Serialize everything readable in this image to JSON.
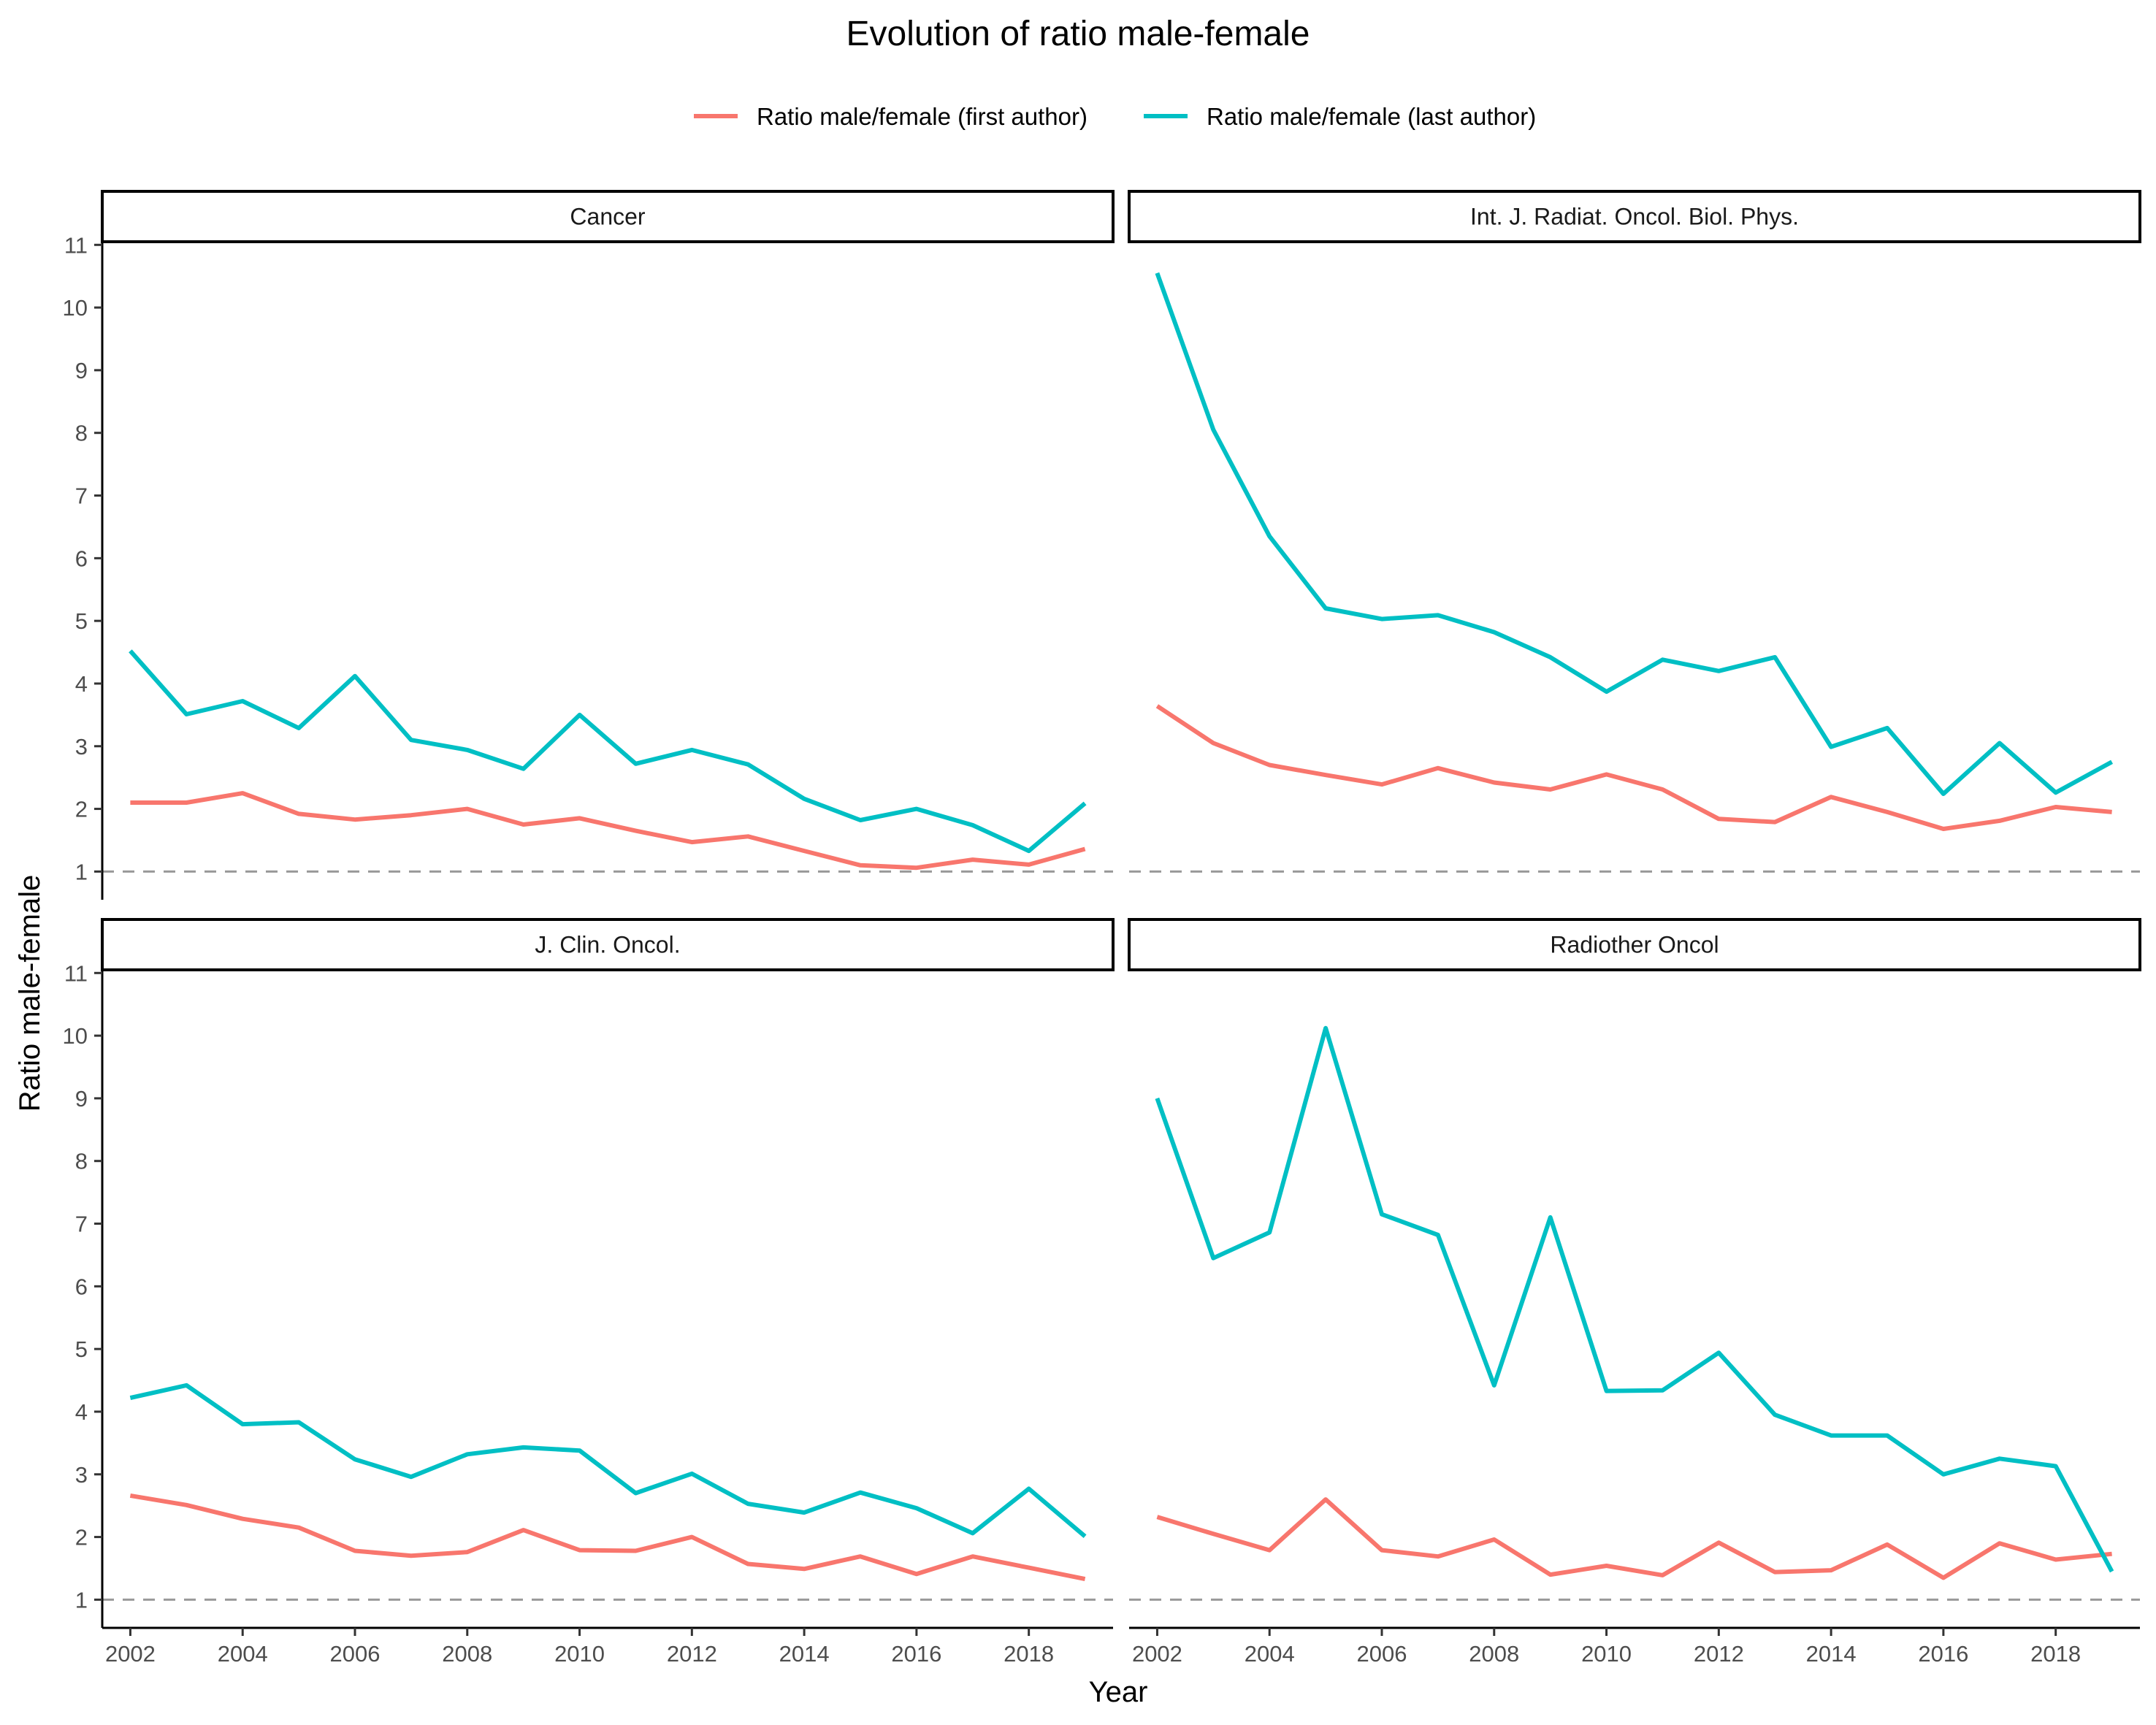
{
  "chart_data": {
    "type": "line",
    "title": "Evolution of ratio male-female",
    "xlabel": "Year",
    "ylabel": "Ratio male-female",
    "xlim": [
      2001.5,
      2019.5
    ],
    "ylim": [
      0.55,
      11.05
    ],
    "x_ticks": [
      2002,
      2004,
      2006,
      2008,
      2010,
      2012,
      2014,
      2016,
      2018
    ],
    "y_ticks": [
      1,
      2,
      3,
      4,
      5,
      6,
      7,
      8,
      9,
      10,
      11
    ],
    "reference_line": 1,
    "legend_position": "top",
    "colors": {
      "first": "#F8766D",
      "last": "#00BFC4",
      "reference": "#999999"
    },
    "legend": [
      {
        "key": "first",
        "label": "Ratio male/female (first author)"
      },
      {
        "key": "last",
        "label": "Ratio male/female (last author)"
      }
    ],
    "x": [
      2002,
      2003,
      2004,
      2005,
      2006,
      2007,
      2008,
      2009,
      2010,
      2011,
      2012,
      2013,
      2014,
      2015,
      2016,
      2017,
      2018,
      2019
    ],
    "panels": [
      {
        "label": "Cancer",
        "series": [
          {
            "key": "first",
            "name": "Ratio male/female (first author)",
            "values": [
              2.1,
              2.1,
              2.25,
              1.92,
              1.83,
              1.9,
              2.0,
              1.75,
              1.85,
              1.65,
              1.47,
              1.56,
              1.33,
              1.1,
              1.06,
              1.19,
              1.11,
              1.36
            ]
          },
          {
            "key": "last",
            "name": "Ratio male/female (last author)",
            "values": [
              4.52,
              3.51,
              3.72,
              3.29,
              4.12,
              3.1,
              2.94,
              2.64,
              3.5,
              2.72,
              2.94,
              2.71,
              2.16,
              1.82,
              2.0,
              1.74,
              1.33,
              2.09
            ]
          }
        ]
      },
      {
        "label": "Int. J. Radiat. Oncol. Biol. Phys.",
        "series": [
          {
            "key": "first",
            "name": "Ratio male/female (first author)",
            "values": [
              3.64,
              3.05,
              2.7,
              2.54,
              2.39,
              2.65,
              2.42,
              2.31,
              2.55,
              2.31,
              1.84,
              1.79,
              2.19,
              1.95,
              1.68,
              1.81,
              2.03,
              1.95
            ]
          },
          {
            "key": "last",
            "name": "Ratio male/female (last author)",
            "values": [
              10.55,
              8.05,
              6.35,
              5.2,
              5.03,
              5.09,
              4.82,
              4.42,
              3.87,
              4.38,
              4.2,
              4.42,
              2.99,
              3.29,
              2.24,
              3.05,
              2.26,
              2.75
            ]
          }
        ]
      },
      {
        "label": "J. Clin. Oncol.",
        "series": [
          {
            "key": "first",
            "name": "Ratio male/female (first author)",
            "values": [
              2.66,
              2.51,
              2.29,
              2.15,
              1.78,
              1.7,
              1.76,
              2.11,
              1.79,
              1.78,
              2.0,
              1.57,
              1.49,
              1.69,
              1.41,
              1.69,
              1.51,
              1.33
            ]
          },
          {
            "key": "last",
            "name": "Ratio male/female (last author)",
            "values": [
              4.22,
              4.42,
              3.8,
              3.83,
              3.24,
              2.96,
              3.32,
              3.43,
              3.38,
              2.7,
              3.01,
              2.53,
              2.39,
              2.71,
              2.46,
              2.06,
              2.77,
              2.01
            ]
          }
        ]
      },
      {
        "label": "Radiother Oncol",
        "series": [
          {
            "key": "first",
            "name": "Ratio male/female (first author)",
            "values": [
              2.32,
              2.05,
              1.79,
              2.6,
              1.79,
              1.69,
              1.96,
              1.4,
              1.54,
              1.39,
              1.91,
              1.44,
              1.47,
              1.88,
              1.35,
              1.9,
              1.64,
              1.73
            ]
          },
          {
            "key": "last",
            "name": "Ratio male/female (last author)",
            "values": [
              9.0,
              6.45,
              6.86,
              10.12,
              7.15,
              6.82,
              4.42,
              7.1,
              4.33,
              4.34,
              4.94,
              3.95,
              3.62,
              3.62,
              3.0,
              3.25,
              3.13,
              1.45
            ]
          }
        ]
      }
    ]
  }
}
